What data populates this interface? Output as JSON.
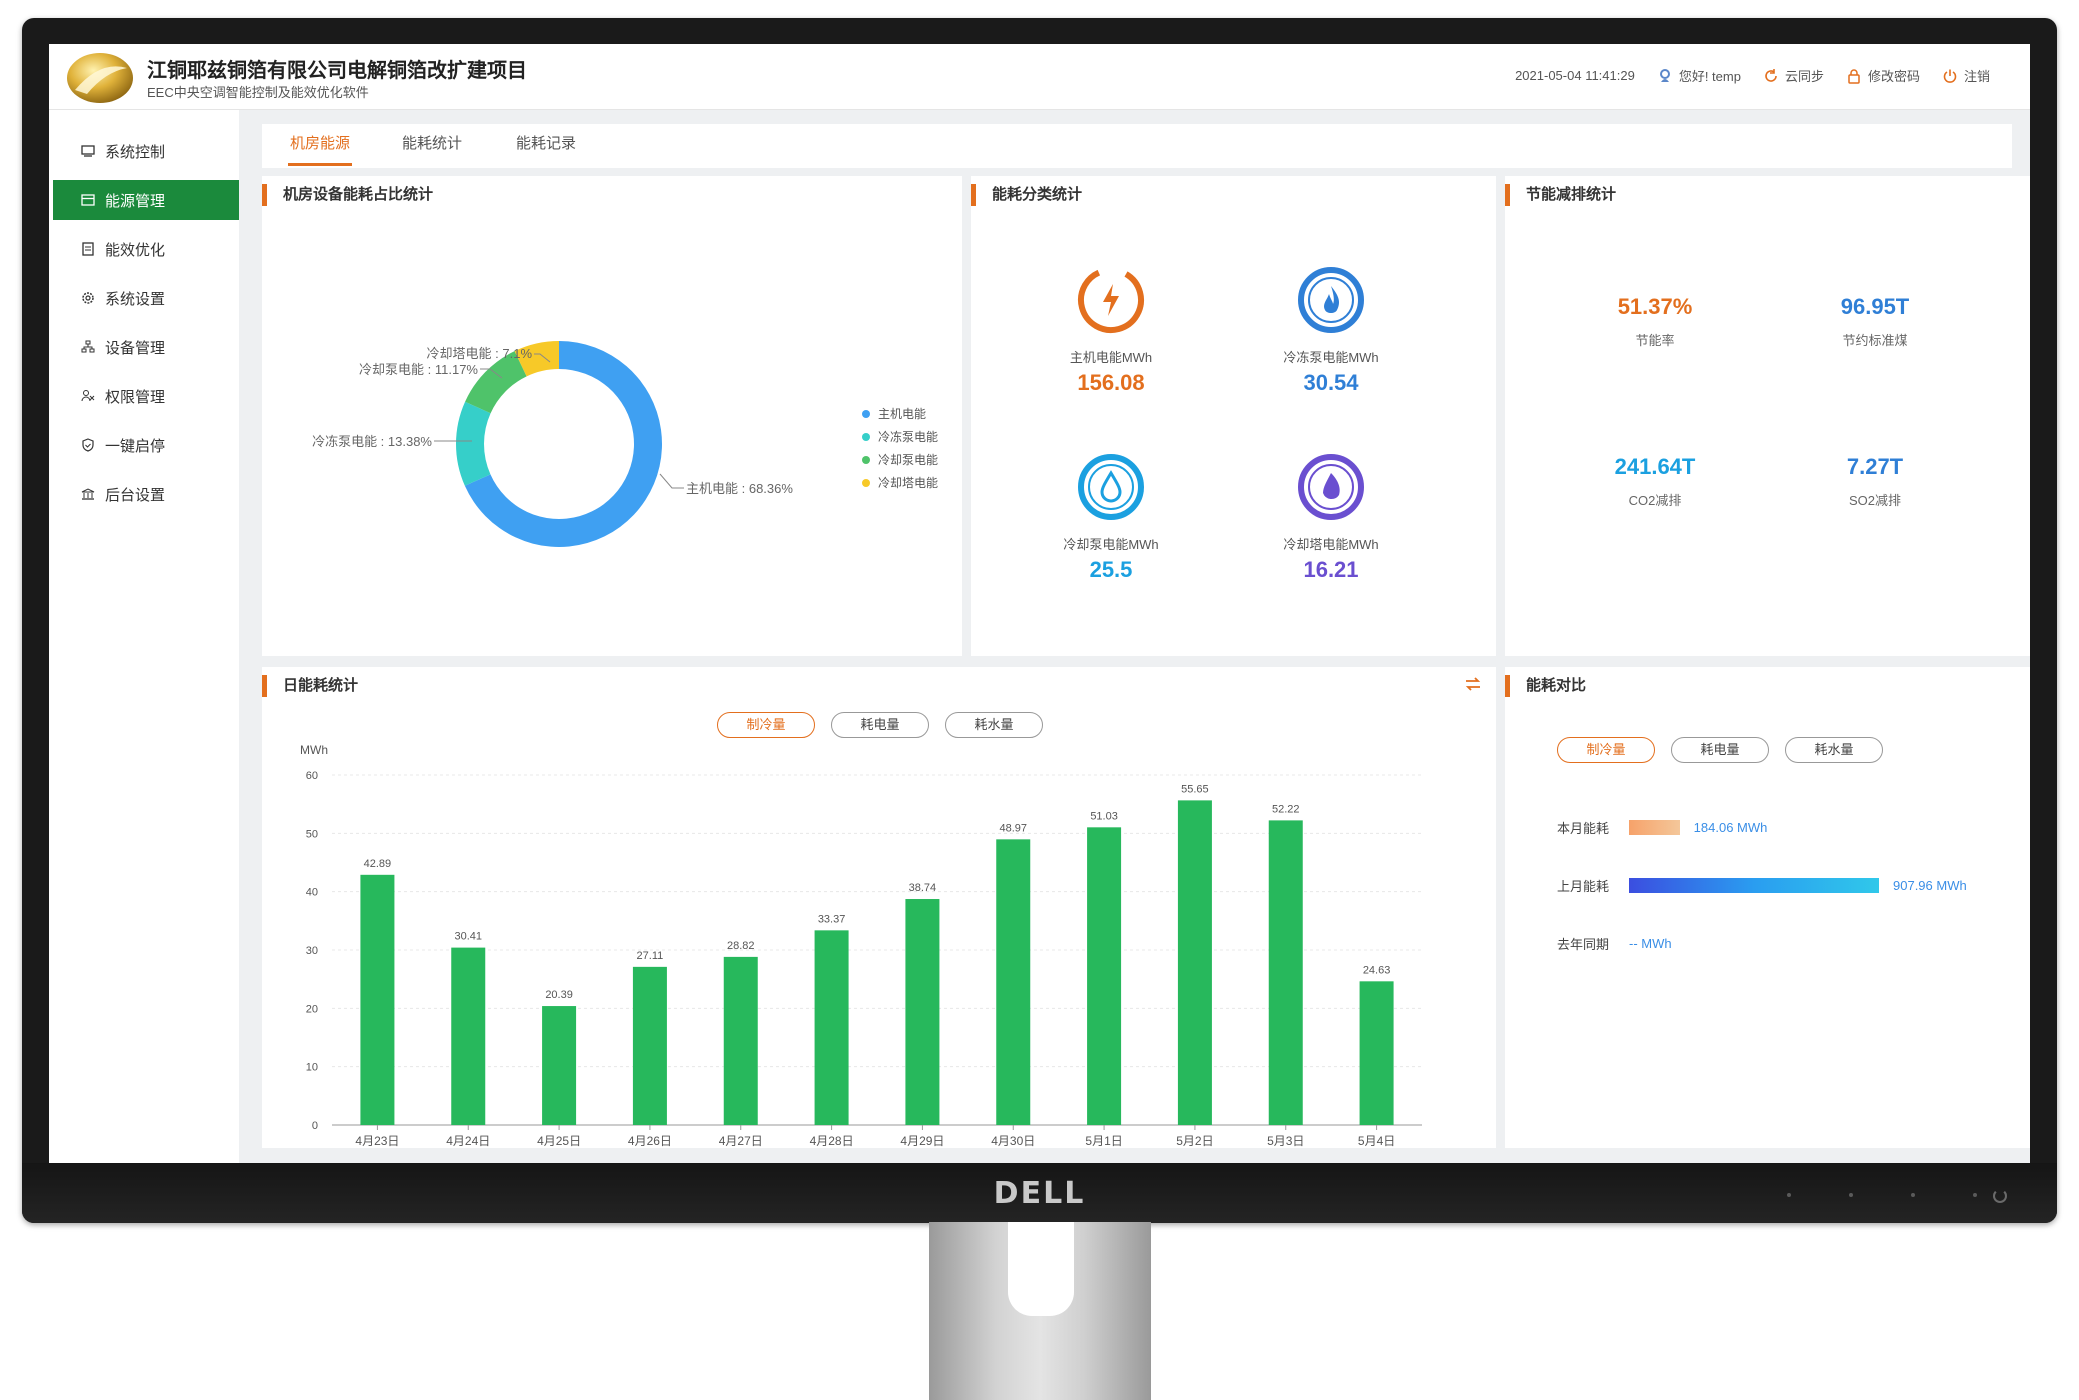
{
  "monitor": {
    "brand": "DELL"
  },
  "header": {
    "title": "江铜耶兹铜箔有限公司电解铜箔改扩建项目",
    "subtitle": "EEC中央空调智能控制及能效优化软件",
    "datetime": "2021-05-04 11:41:29",
    "greeting": "您好! temp",
    "sync_label": "云同步",
    "change_password_label": "修改密码",
    "logout_label": "注销"
  },
  "sidebar": {
    "items": [
      {
        "label": "系统控制",
        "icon": "monitor-icon"
      },
      {
        "label": "能源管理",
        "icon": "card-icon",
        "active": true
      },
      {
        "label": "能效优化",
        "icon": "document-icon"
      },
      {
        "label": "系统设置",
        "icon": "gear-icon"
      },
      {
        "label": "设备管理",
        "icon": "network-icon"
      },
      {
        "label": "权限管理",
        "icon": "users-icon"
      },
      {
        "label": "一键启停",
        "icon": "shield-icon"
      },
      {
        "label": "后台设置",
        "icon": "building-icon"
      }
    ]
  },
  "tabs": [
    {
      "label": "机房能源",
      "active": true
    },
    {
      "label": "能耗统计"
    },
    {
      "label": "能耗记录"
    }
  ],
  "panels": {
    "donut": {
      "title": "机房设备能耗占比统计",
      "callouts": [
        "冷却塔电能 : 7.1%",
        "冷却泵电能 : 11.17%",
        "冷冻泵电能 : 13.38%",
        "主机电能 : 68.36%"
      ]
    },
    "category": {
      "title": "能耗分类统计",
      "items": [
        {
          "label": "主机电能MWh",
          "value": "156.08",
          "color": "#e36f1e",
          "icon": "lightning-icon"
        },
        {
          "label": "冷冻泵电能MWh",
          "value": "30.54",
          "color": "#2f7fd6",
          "icon": "flame-icon"
        },
        {
          "label": "冷却泵电能MWh",
          "value": "25.5",
          "color": "#1ba0e0",
          "icon": "water-drop-icon"
        },
        {
          "label": "冷却塔电能MWh",
          "value": "16.21",
          "color": "#6a4fd0",
          "icon": "leaf-drop-icon"
        }
      ]
    },
    "saving": {
      "title": "节能减排统计",
      "items": [
        {
          "value": "51.37%",
          "label": "节能率",
          "color": "#e36f1e"
        },
        {
          "value": "96.95T",
          "label": "节约标准煤",
          "color": "#2f7fd6"
        },
        {
          "value": "241.64T",
          "label": "CO2减排",
          "color": "#1ba0e0"
        },
        {
          "value": "7.27T",
          "label": "SO2减排",
          "color": "#2f7fd6"
        }
      ]
    },
    "daily": {
      "title": "日能耗统计",
      "pills": [
        "制冷量",
        "耗电量",
        "耗水量"
      ]
    },
    "compare": {
      "title": "能耗对比",
      "pills": [
        "制冷量",
        "耗电量",
        "耗水量"
      ],
      "rows": [
        {
          "label": "本月能耗",
          "value": "184.06 MWh",
          "amount": 184.06
        },
        {
          "label": "上月能耗",
          "value": "907.96 MWh",
          "amount": 907.96
        },
        {
          "label": "去年同期",
          "value": "-- MWh",
          "amount": 0
        }
      ]
    }
  },
  "chart_data": [
    {
      "type": "pie",
      "categories": [
        "主机电能",
        "冷冻泵电能",
        "冷却泵电能",
        "冷却塔电能"
      ],
      "values": [
        68.36,
        13.38,
        11.17,
        7.1
      ],
      "colors": [
        "#3fa0f2",
        "#36cfc9",
        "#4fc36a",
        "#f7c928"
      ],
      "legend_position": "right"
    },
    {
      "type": "bar",
      "categories": [
        "4月23日",
        "4月24日",
        "4月25日",
        "4月26日",
        "4月27日",
        "4月28日",
        "4月29日",
        "4月30日",
        "5月1日",
        "5月2日",
        "5月3日",
        "5月4日"
      ],
      "values": [
        42.89,
        30.41,
        20.39,
        27.11,
        28.82,
        33.37,
        38.74,
        48.97,
        51.03,
        55.65,
        52.22,
        24.63
      ],
      "ylabel": "MWh",
      "ylim": [
        0,
        60
      ],
      "yticks": [
        0,
        10,
        20,
        30,
        40,
        50,
        60
      ],
      "color": "#27b85c",
      "grid": true
    }
  ]
}
